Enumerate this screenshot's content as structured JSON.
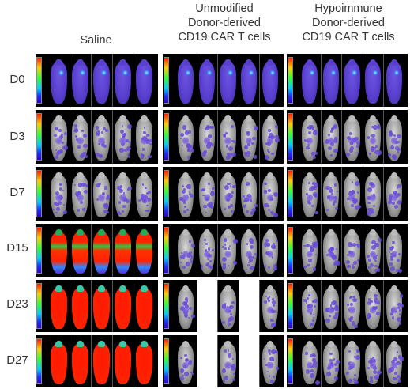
{
  "columns": [
    {
      "header": "Saline"
    },
    {
      "header": "Unmodified\nDonor-derived\nCD19 CAR T cells"
    },
    {
      "header": "Hypoimmune\nDonor-derived\nCD19 CAR T cells"
    }
  ],
  "rows": [
    {
      "label": "D0"
    },
    {
      "label": "D3"
    },
    {
      "label": "D7"
    },
    {
      "label": "D15"
    },
    {
      "label": "D23"
    },
    {
      "label": "D27"
    }
  ],
  "mice_per_panel": 5,
  "signal_levels": [
    [
      "purple",
      "purple",
      "purple"
    ],
    [
      "white-purple",
      "white-purple",
      "white-purple"
    ],
    [
      "white-purple",
      "white-purple",
      "white-purple"
    ],
    [
      "red-green",
      "white-purple",
      "white-purple"
    ],
    [
      "red",
      "white-purple-gapped",
      "white-purple"
    ],
    [
      "red",
      "white-purple-gapped",
      "white-purple"
    ]
  ]
}
